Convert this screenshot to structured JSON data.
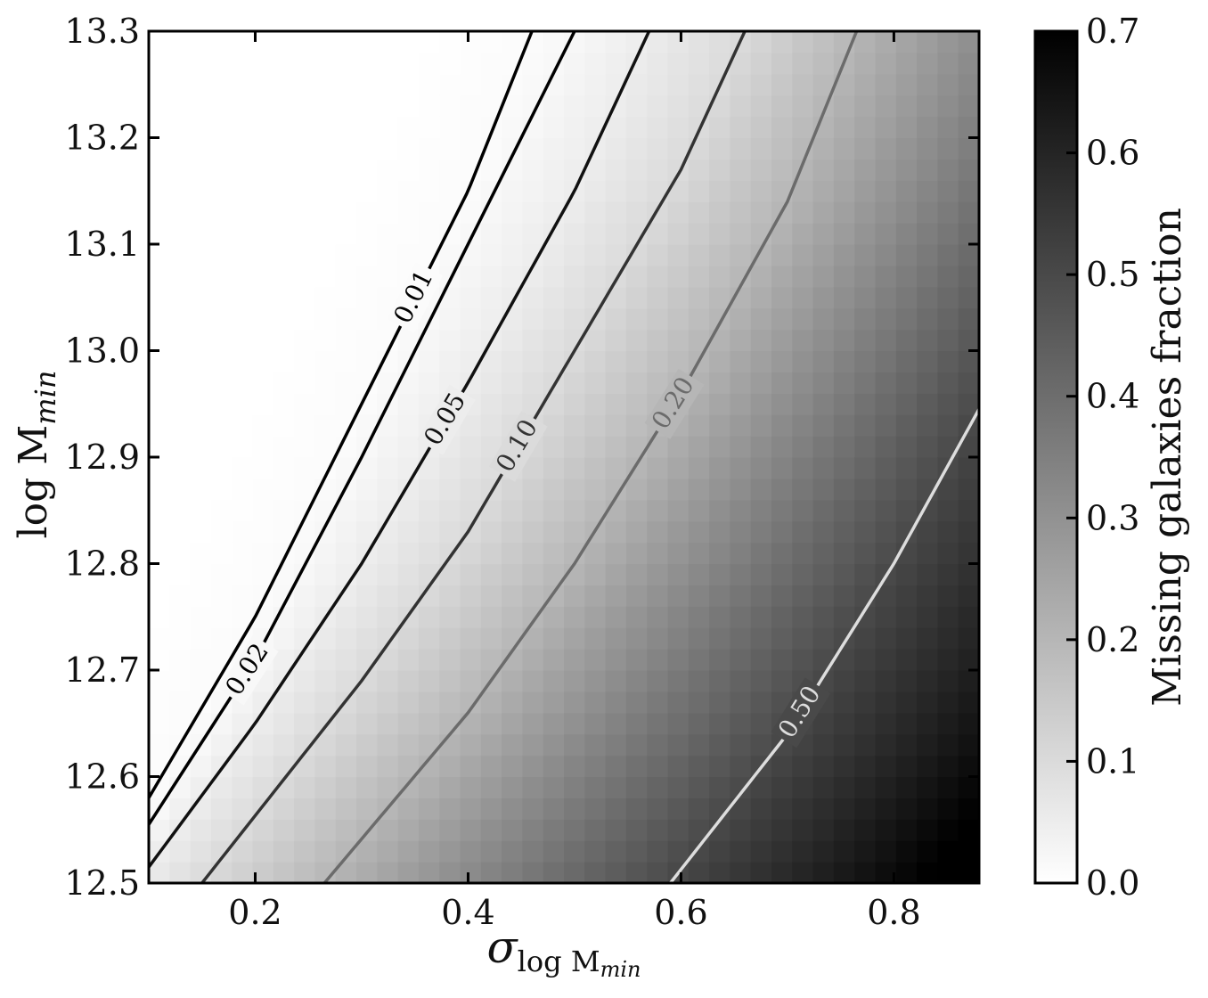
{
  "chart_data": {
    "type": "heatmap",
    "title": "",
    "xlabel": {
      "base": "σ",
      "sub": "log M",
      "subsub": "min"
    },
    "ylabel": {
      "base": "log M",
      "sub": "min"
    },
    "xlim": [
      0.1,
      0.88
    ],
    "ylim": [
      12.5,
      13.3
    ],
    "x_ticks": [
      0.2,
      0.4,
      0.6,
      0.8
    ],
    "x_tick_labels": [
      "0.2",
      "0.4",
      "0.6",
      "0.8"
    ],
    "y_ticks": [
      12.5,
      12.6,
      12.7,
      12.8,
      12.9,
      13.0,
      13.1,
      13.2,
      13.3
    ],
    "y_tick_labels": [
      "12.5",
      "12.6",
      "12.7",
      "12.8",
      "12.9",
      "13.0",
      "13.1",
      "13.2",
      "13.3"
    ],
    "colorbar": {
      "label": "Missing galaxies fraction",
      "range": [
        0.0,
        0.7
      ],
      "ticks": [
        0.0,
        0.1,
        0.2,
        0.3,
        0.4,
        0.5,
        0.6,
        0.7
      ],
      "tick_labels": [
        "0.0",
        "0.1",
        "0.2",
        "0.3",
        "0.4",
        "0.5",
        "0.6",
        "0.7"
      ],
      "colormap": "Greys",
      "low_color": "#ffffff",
      "high_color": "#000000"
    },
    "grid": false,
    "contours": [
      {
        "level": 0.01,
        "label": "0.01",
        "color": "#000000",
        "points": [
          [
            0.1,
            12.58
          ],
          [
            0.2,
            12.75
          ],
          [
            0.3,
            12.95
          ],
          [
            0.4,
            13.15
          ],
          [
            0.46,
            13.3
          ]
        ]
      },
      {
        "level": 0.02,
        "label": "0.02",
        "color": "#000000",
        "points": [
          [
            0.1,
            12.555
          ],
          [
            0.2,
            12.71
          ],
          [
            0.3,
            12.9
          ],
          [
            0.4,
            13.1
          ],
          [
            0.5,
            13.3
          ]
        ]
      },
      {
        "level": 0.05,
        "label": "0.05",
        "color": "#111111",
        "points": [
          [
            0.1,
            12.515
          ],
          [
            0.2,
            12.65
          ],
          [
            0.3,
            12.8
          ],
          [
            0.4,
            12.97
          ],
          [
            0.5,
            13.15
          ],
          [
            0.57,
            13.3
          ]
        ]
      },
      {
        "level": 0.1,
        "label": "0.10",
        "color": "#333333",
        "points": [
          [
            0.15,
            12.5
          ],
          [
            0.3,
            12.69
          ],
          [
            0.4,
            12.83
          ],
          [
            0.5,
            13.0
          ],
          [
            0.6,
            13.17
          ],
          [
            0.66,
            13.3
          ]
        ]
      },
      {
        "level": 0.2,
        "label": "0.20",
        "color": "#6b6b6b",
        "points": [
          [
            0.265,
            12.5
          ],
          [
            0.4,
            12.66
          ],
          [
            0.5,
            12.8
          ],
          [
            0.6,
            12.96
          ],
          [
            0.7,
            13.14
          ],
          [
            0.765,
            13.3
          ]
        ]
      },
      {
        "level": 0.5,
        "label": "0.50",
        "color": "#dddddd",
        "points": [
          [
            0.59,
            12.5
          ],
          [
            0.7,
            12.64
          ],
          [
            0.8,
            12.8
          ],
          [
            0.88,
            12.945
          ]
        ]
      }
    ]
  }
}
